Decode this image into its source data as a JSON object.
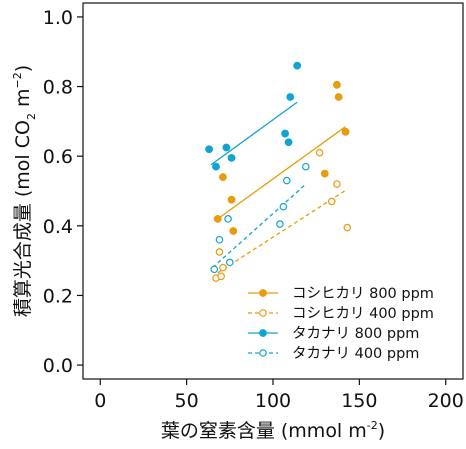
{
  "chart_data": {
    "type": "scatter",
    "xlabel": "葉の窒素含量 (mmol m",
    "xlabel_sup": "-2",
    "xlabel_close": ")",
    "ylabel_prefix": "積算光合成量 (mol CO",
    "ylabel_sub": "2",
    "ylabel_mid": " m",
    "ylabel_sup": "−2",
    "ylabel_close": ")",
    "xlim": [
      -10,
      210
    ],
    "ylim": [
      -0.04,
      1.04
    ],
    "xticks": [
      0,
      50,
      100,
      150,
      200
    ],
    "yticks": [
      0.0,
      0.2,
      0.4,
      0.6,
      0.8,
      1.0
    ],
    "xtick_labels": [
      "0",
      "50",
      "100",
      "150",
      "200"
    ],
    "ytick_labels": [
      "0.0",
      "0.2",
      "0.4",
      "0.6",
      "0.8",
      "1.0"
    ],
    "grid": false,
    "legend_position": "bottom-right",
    "colors": {
      "koshihikari": "#E89B0C",
      "takanari": "#11A3D1"
    },
    "series": [
      {
        "name": "コシヒカリ 800 ppm",
        "color": "#E89B0C",
        "filled": true,
        "dashed": false,
        "points": [
          [
            68,
            0.42
          ],
          [
            71,
            0.54
          ],
          [
            76,
            0.475
          ],
          [
            77,
            0.385
          ],
          [
            130,
            0.55
          ],
          [
            137,
            0.805
          ],
          [
            138,
            0.77
          ],
          [
            142,
            0.67
          ]
        ],
        "fit": [
          [
            68,
            0.42
          ],
          [
            142,
            0.685
          ]
        ]
      },
      {
        "name": "コシヒカリ 400 ppm",
        "color": "#E89B0C",
        "filled": false,
        "dashed": true,
        "points": [
          [
            67,
            0.25
          ],
          [
            70,
            0.255
          ],
          [
            71,
            0.28
          ],
          [
            69,
            0.325
          ],
          [
            127,
            0.61
          ],
          [
            134,
            0.47
          ],
          [
            137,
            0.52
          ],
          [
            143,
            0.395
          ]
        ],
        "fit": [
          [
            68,
            0.265
          ],
          [
            143,
            0.505
          ]
        ]
      },
      {
        "name": "タカナリ 800 ppm",
        "color": "#11A3D1",
        "filled": true,
        "dashed": false,
        "points": [
          [
            63,
            0.62
          ],
          [
            67,
            0.57
          ],
          [
            73,
            0.625
          ],
          [
            76,
            0.595
          ],
          [
            107,
            0.665
          ],
          [
            109,
            0.64
          ],
          [
            110,
            0.77
          ],
          [
            114,
            0.86
          ]
        ],
        "fit": [
          [
            64,
            0.575
          ],
          [
            114,
            0.755
          ]
        ]
      },
      {
        "name": "タカナリ 400 ppm",
        "color": "#11A3D1",
        "filled": false,
        "dashed": true,
        "points": [
          [
            66,
            0.275
          ],
          [
            69,
            0.36
          ],
          [
            75,
            0.295
          ],
          [
            74,
            0.42
          ],
          [
            104,
            0.405
          ],
          [
            106,
            0.455
          ],
          [
            108,
            0.53
          ],
          [
            119,
            0.57
          ]
        ],
        "fit": [
          [
            65,
            0.28
          ],
          [
            118,
            0.515
          ]
        ]
      }
    ]
  }
}
